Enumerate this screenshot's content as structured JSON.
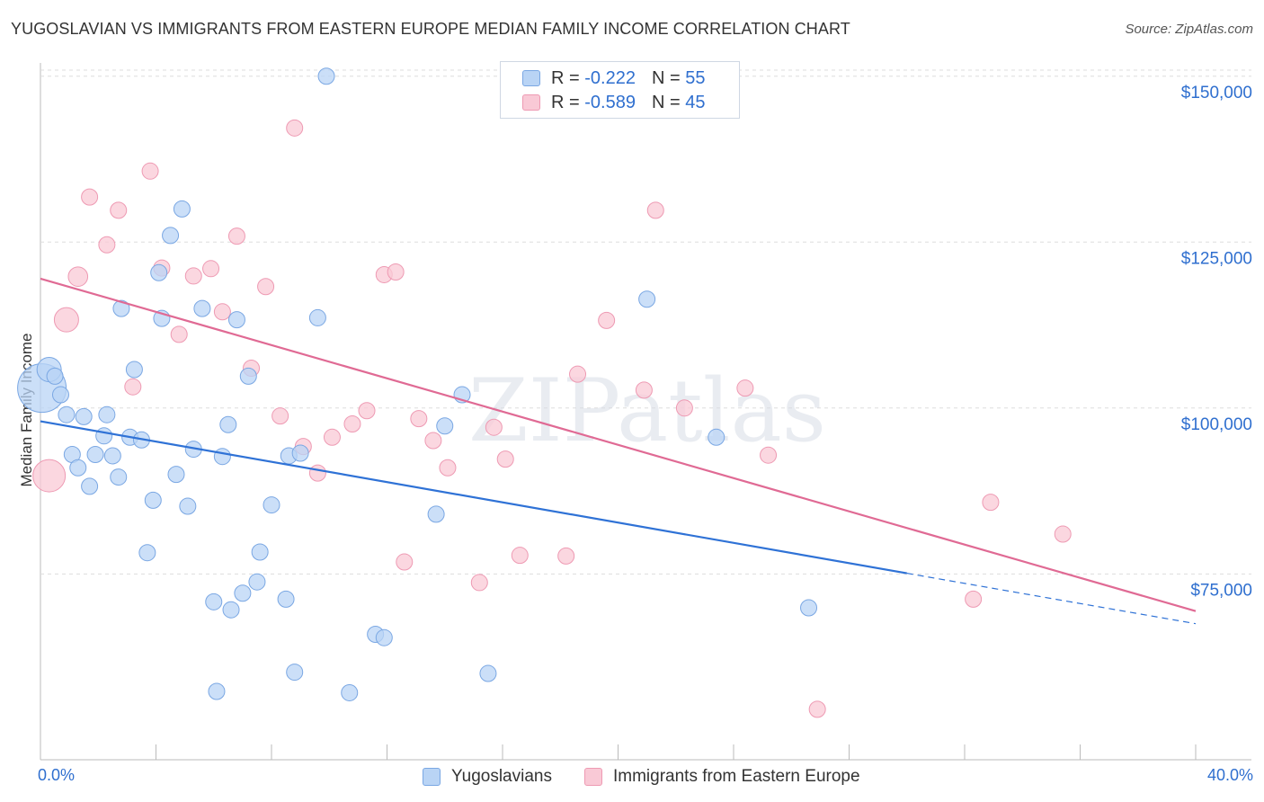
{
  "title": "YUGOSLAVIAN VS IMMIGRANTS FROM EASTERN EUROPE MEDIAN FAMILY INCOME CORRELATION CHART",
  "source": "Source: ZipAtlas.com",
  "watermark": "ZIPatlas",
  "colors": {
    "blue_fill": "#b9d4f5",
    "blue_stroke": "#7aa7e3",
    "blue_line": "#2f72d6",
    "pink_fill": "#f9c9d6",
    "pink_stroke": "#ee9ab3",
    "pink_line": "#e06a94",
    "tick_text": "#2f6fcf",
    "grid": "#dddddd"
  },
  "legend_top": [
    {
      "r_label": "R =",
      "r_value": "-0.222",
      "n_label": "N =",
      "n_value": "55"
    },
    {
      "r_label": "R =",
      "r_value": "-0.589",
      "n_label": "N =",
      "n_value": "45"
    }
  ],
  "chart_data": {
    "type": "scatter",
    "title": "YUGOSLAVIAN VS IMMIGRANTS FROM EASTERN EUROPE MEDIAN FAMILY INCOME CORRELATION CHART",
    "xlabel": "",
    "ylabel": "Median Family Income",
    "xlim": [
      0,
      40
    ],
    "ylim": [
      47000,
      152000
    ],
    "x_tick_labels": [
      "0.0%",
      "40.0%"
    ],
    "y_ticks": [
      75000,
      100000,
      125000,
      150000
    ],
    "y_tick_labels": [
      "$75,000",
      "$100,000",
      "$125,000",
      "$150,000"
    ],
    "legend_position": "bottom",
    "series": [
      {
        "name": "Yugoslavians",
        "r": -0.222,
        "n": 55,
        "trend": {
          "x0": 0,
          "y0": 98000,
          "x1": 30,
          "y1": 75100,
          "dash_x1": 40,
          "dash_y1": 67500
        },
        "points": [
          [
            0.05,
            103000,
            3
          ],
          [
            0.3,
            105800,
            1.5
          ],
          [
            0.5,
            104800,
            1
          ],
          [
            0.7,
            102000,
            1
          ],
          [
            0.9,
            99000,
            1
          ],
          [
            1.1,
            93000,
            1
          ],
          [
            1.3,
            91000,
            1
          ],
          [
            1.5,
            98700,
            1
          ],
          [
            1.7,
            88200,
            1
          ],
          [
            1.9,
            93000,
            1
          ],
          [
            2.2,
            95800,
            1
          ],
          [
            2.3,
            99000,
            1
          ],
          [
            2.5,
            92800,
            1
          ],
          [
            2.7,
            89600,
            1
          ],
          [
            2.8,
            115000,
            1
          ],
          [
            3.1,
            95600,
            1
          ],
          [
            3.25,
            105800,
            1
          ],
          [
            3.5,
            95200,
            1
          ],
          [
            3.7,
            78200,
            1
          ],
          [
            3.9,
            86100,
            1
          ],
          [
            4.1,
            120400,
            1
          ],
          [
            4.2,
            113500,
            1
          ],
          [
            4.5,
            126000,
            1
          ],
          [
            4.7,
            90000,
            1
          ],
          [
            4.9,
            130000,
            1
          ],
          [
            5.1,
            85200,
            1
          ],
          [
            5.3,
            93800,
            1
          ],
          [
            5.6,
            115000,
            1
          ],
          [
            6.0,
            70800,
            1
          ],
          [
            6.1,
            57300,
            1
          ],
          [
            6.3,
            92700,
            1
          ],
          [
            6.5,
            97500,
            1
          ],
          [
            6.6,
            69600,
            1
          ],
          [
            6.8,
            113300,
            1
          ],
          [
            7.0,
            72100,
            1
          ],
          [
            7.2,
            104800,
            1
          ],
          [
            7.5,
            73800,
            1
          ],
          [
            7.6,
            78300,
            1
          ],
          [
            8.0,
            85400,
            1
          ],
          [
            8.5,
            71200,
            1
          ],
          [
            8.6,
            92800,
            1
          ],
          [
            8.8,
            60200,
            1
          ],
          [
            9.0,
            93200,
            1
          ],
          [
            9.6,
            113600,
            1
          ],
          [
            9.9,
            150000,
            1
          ],
          [
            10.7,
            57100,
            1
          ],
          [
            11.6,
            65900,
            1
          ],
          [
            11.9,
            65400,
            1
          ],
          [
            13.7,
            84000,
            1
          ],
          [
            14.0,
            97300,
            1
          ],
          [
            14.6,
            102000,
            1
          ],
          [
            15.5,
            60000,
            1
          ],
          [
            21.0,
            116400,
            1
          ],
          [
            23.4,
            95600,
            1
          ],
          [
            26.6,
            69900,
            1
          ]
        ]
      },
      {
        "name": "Immigrants from Eastern Europe",
        "r": -0.589,
        "n": 45,
        "trend": {
          "x0": 0,
          "y0": 119500,
          "x1": 40,
          "y1": 69400
        },
        "points": [
          [
            0.3,
            89800,
            2
          ],
          [
            0.9,
            113300,
            1.5
          ],
          [
            1.3,
            119800,
            1.2
          ],
          [
            1.7,
            131800,
            1
          ],
          [
            2.3,
            124600,
            1
          ],
          [
            2.7,
            129800,
            1
          ],
          [
            3.2,
            103200,
            1
          ],
          [
            3.8,
            135700,
            1
          ],
          [
            4.2,
            121100,
            1
          ],
          [
            4.8,
            111100,
            1
          ],
          [
            5.3,
            119900,
            1
          ],
          [
            5.9,
            121000,
            1
          ],
          [
            6.3,
            114500,
            1
          ],
          [
            6.8,
            125900,
            1
          ],
          [
            7.3,
            106000,
            1
          ],
          [
            7.8,
            118300,
            1
          ],
          [
            8.3,
            98800,
            1
          ],
          [
            8.8,
            142200,
            1
          ],
          [
            9.1,
            94200,
            1
          ],
          [
            9.6,
            90200,
            1
          ],
          [
            10.1,
            95600,
            1
          ],
          [
            10.8,
            97600,
            1
          ],
          [
            11.3,
            99600,
            1
          ],
          [
            11.9,
            120100,
            1
          ],
          [
            12.3,
            120500,
            1
          ],
          [
            12.6,
            76800,
            1
          ],
          [
            13.1,
            98400,
            1
          ],
          [
            13.6,
            95100,
            1
          ],
          [
            14.1,
            91000,
            1
          ],
          [
            15.2,
            73700,
            1
          ],
          [
            15.7,
            97100,
            1
          ],
          [
            16.1,
            92300,
            1
          ],
          [
            16.6,
            77800,
            1
          ],
          [
            18.2,
            77700,
            1
          ],
          [
            18.6,
            105100,
            1
          ],
          [
            19.6,
            113200,
            1
          ],
          [
            20.9,
            102700,
            1
          ],
          [
            21.3,
            129800,
            1
          ],
          [
            22.3,
            100000,
            1
          ],
          [
            24.4,
            103000,
            1
          ],
          [
            25.2,
            92900,
            1
          ],
          [
            26.9,
            54600,
            1
          ],
          [
            32.3,
            71200,
            1
          ],
          [
            32.9,
            85800,
            1
          ],
          [
            35.4,
            81000,
            1
          ]
        ]
      }
    ]
  }
}
